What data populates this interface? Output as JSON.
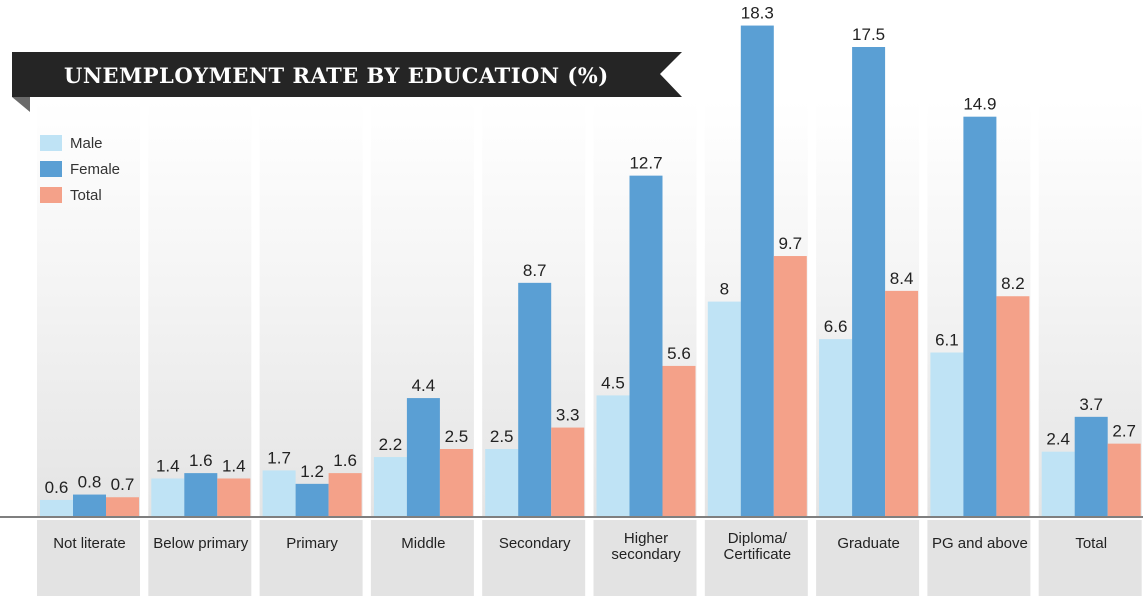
{
  "chart_data": {
    "type": "bar",
    "title": "UNEMPLOYMENT RATE BY EDUCATION (%)",
    "xlabel": "",
    "ylabel": "",
    "ylim": [
      0,
      20
    ],
    "grid": false,
    "legend_position": "top-left",
    "categories": [
      [
        "Not literate"
      ],
      [
        "Below primary"
      ],
      [
        "Primary"
      ],
      [
        "Middle"
      ],
      [
        "Secondary"
      ],
      [
        "Higher",
        "secondary"
      ],
      [
        "Diploma/",
        "Certificate"
      ],
      [
        "Graduate"
      ],
      [
        "PG and above"
      ],
      [
        "Total"
      ]
    ],
    "series": [
      {
        "name": "Male",
        "color": "#bfe3f5",
        "values": [
          0.6,
          1.4,
          1.7,
          2.2,
          2.5,
          4.5,
          8,
          6.6,
          6.1,
          2.4
        ]
      },
      {
        "name": "Female",
        "color": "#5a9fd4",
        "values": [
          0.8,
          1.6,
          1.2,
          4.4,
          8.7,
          12.7,
          18.3,
          17.5,
          14.9,
          3.7
        ]
      },
      {
        "name": "Total",
        "color": "#f4a189",
        "values": [
          0.7,
          1.4,
          1.6,
          2.5,
          3.3,
          5.6,
          9.7,
          8.4,
          8.2,
          2.7
        ]
      }
    ]
  }
}
